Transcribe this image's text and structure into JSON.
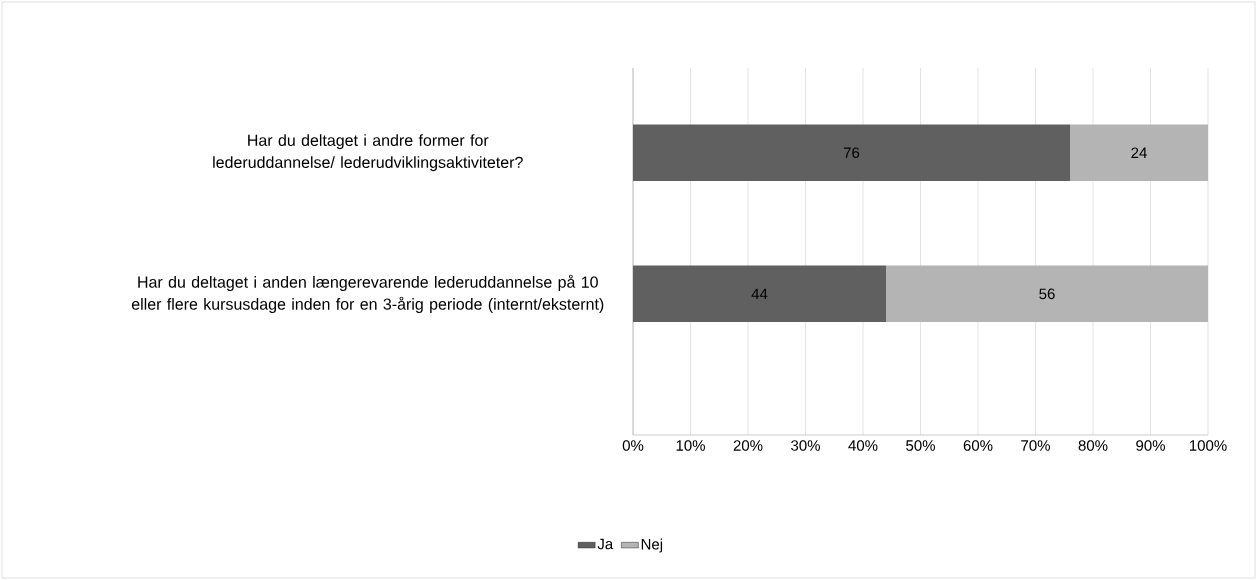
{
  "chart_data": {
    "type": "bar",
    "orientation": "horizontal",
    "stacked": true,
    "categories": [
      "Har du deltaget i andre former for lederuddannelse/ lederudviklingsaktiviteter?",
      "Har du deltaget i anden længerevarende lederuddannelse på 10 eller flere kursusdage inden for en 3-årig periode (internt/eksternt)"
    ],
    "series": [
      {
        "name": "Ja",
        "color": "#606060",
        "values": [
          76,
          44
        ]
      },
      {
        "name": "Nej",
        "color": "#b4b4b4",
        "values": [
          24,
          56
        ]
      }
    ],
    "xlim": [
      0,
      100
    ],
    "xticks": [
      {
        "value": 0,
        "label": "0%"
      },
      {
        "value": 10,
        "label": "10%"
      },
      {
        "value": 20,
        "label": "20%"
      },
      {
        "value": 30,
        "label": "30%"
      },
      {
        "value": 40,
        "label": "40%"
      },
      {
        "value": 50,
        "label": "50%"
      },
      {
        "value": 60,
        "label": "60%"
      },
      {
        "value": 70,
        "label": "70%"
      },
      {
        "value": 80,
        "label": "80%"
      },
      {
        "value": 90,
        "label": "90%"
      },
      {
        "value": 100,
        "label": "100%"
      }
    ],
    "grid": "x",
    "legend": "bottom",
    "data_labels": true
  }
}
